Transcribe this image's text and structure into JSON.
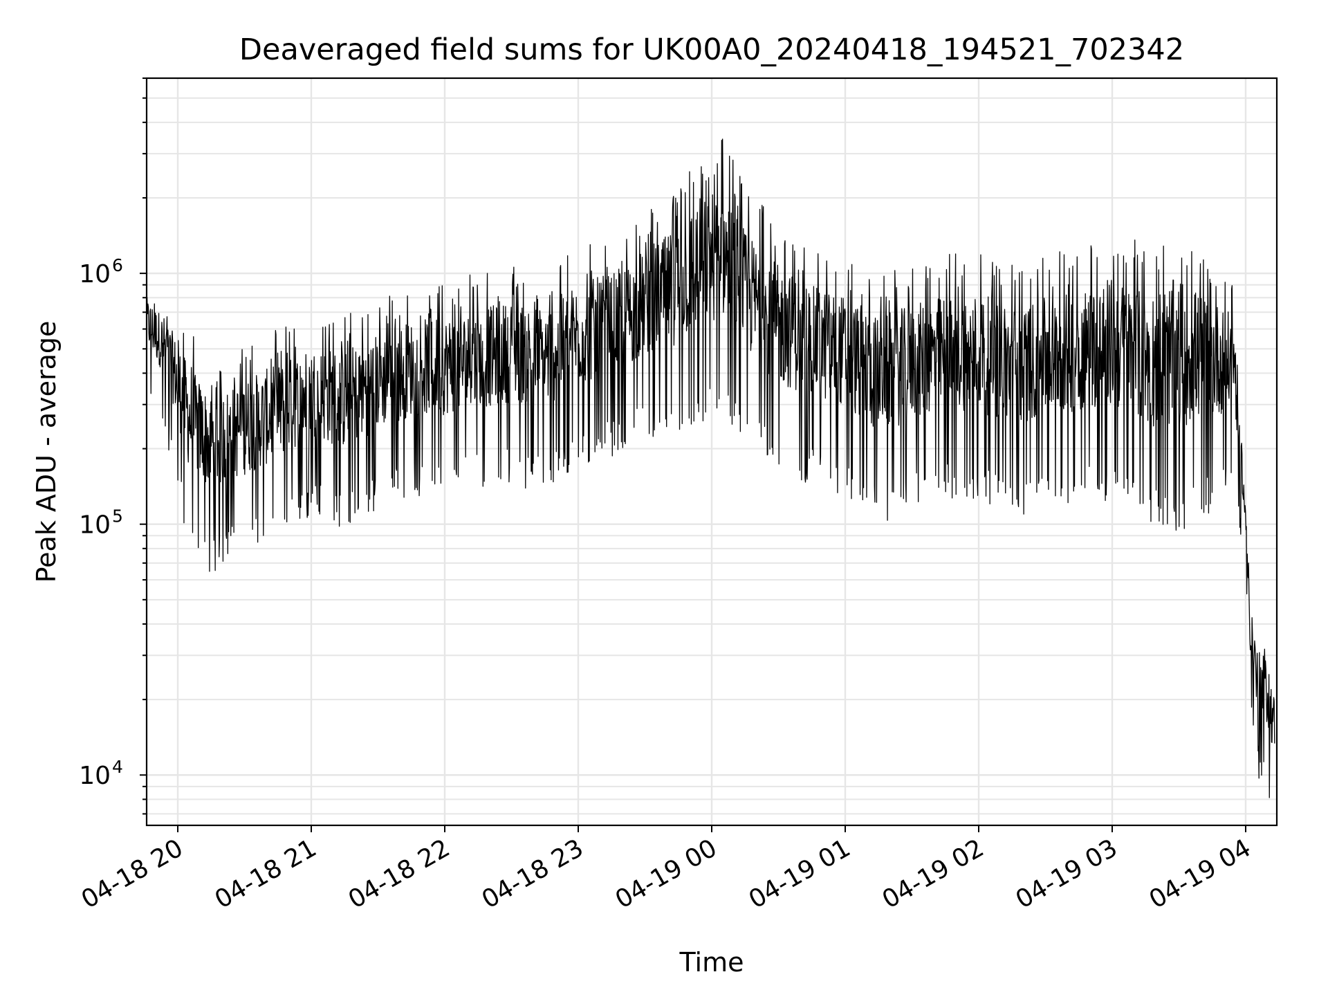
{
  "chart_data": {
    "type": "line",
    "title": "Deaveraged field sums for UK00A0_20240418_194521_702342",
    "xlabel": "Time",
    "ylabel": "Peak ADU - average",
    "x_range": [
      "2024-04-18T19:46",
      "2024-04-19T04:14"
    ],
    "x_ticks": [
      {
        "time": "2024-04-18T20:00",
        "label": "04-18 20"
      },
      {
        "time": "2024-04-18T21:00",
        "label": "04-18 21"
      },
      {
        "time": "2024-04-18T22:00",
        "label": "04-18 22"
      },
      {
        "time": "2024-04-18T23:00",
        "label": "04-18 23"
      },
      {
        "time": "2024-04-19T00:00",
        "label": "04-19 00"
      },
      {
        "time": "2024-04-19T01:00",
        "label": "04-19 01"
      },
      {
        "time": "2024-04-19T02:00",
        "label": "04-19 02"
      },
      {
        "time": "2024-04-19T03:00",
        "label": "04-19 03"
      },
      {
        "time": "2024-04-19T04:00",
        "label": "04-19 04"
      }
    ],
    "y_scale": "log",
    "ylim": [
      6300,
      6000000
    ],
    "y_ticks": [
      {
        "value": 10000,
        "base": "10",
        "exp": "4"
      },
      {
        "value": 100000,
        "base": "10",
        "exp": "5"
      },
      {
        "value": 1000000,
        "base": "10",
        "exp": "6"
      }
    ],
    "grid": true,
    "line_color": "#000000",
    "grid_color": "#e6e6e6",
    "series": [
      {
        "x": [
          "2024-04-18T19:46",
          "2024-04-18T19:55",
          "2024-04-18T20:05",
          "2024-04-18T20:15",
          "2024-04-18T20:25",
          "2024-04-18T20:35",
          "2024-04-18T20:45",
          "2024-04-18T21:00",
          "2024-04-18T21:15",
          "2024-04-18T21:30",
          "2024-04-18T21:45",
          "2024-04-18T22:00",
          "2024-04-18T22:15",
          "2024-04-18T22:30",
          "2024-04-18T22:45",
          "2024-04-18T23:00",
          "2024-04-18T23:15",
          "2024-04-18T23:30",
          "2024-04-18T23:45",
          "2024-04-18T23:55",
          "2024-04-19T00:05",
          "2024-04-19T00:15",
          "2024-04-19T00:30",
          "2024-04-19T00:45",
          "2024-04-19T01:00",
          "2024-04-19T01:15",
          "2024-04-19T01:30",
          "2024-04-19T01:45",
          "2024-04-19T02:00",
          "2024-04-19T02:15",
          "2024-04-19T02:30",
          "2024-04-19T02:45",
          "2024-04-19T03:00",
          "2024-04-19T03:15",
          "2024-04-19T03:30",
          "2024-04-19T03:45",
          "2024-04-19T03:55",
          "2024-04-19T04:00",
          "2024-04-19T04:02",
          "2024-04-19T04:05",
          "2024-04-19T04:10",
          "2024-04-19T04:13"
        ],
        "y": [
          650000,
          450000,
          220000,
          180000,
          200000,
          220000,
          230000,
          300000,
          260000,
          310000,
          360000,
          350000,
          380000,
          400000,
          380000,
          450000,
          520000,
          600000,
          700000,
          1100000,
          1000000,
          700000,
          560000,
          480000,
          450000,
          330000,
          400000,
          420000,
          420000,
          380000,
          400000,
          420000,
          420000,
          340000,
          330000,
          380000,
          420000,
          120000,
          50000,
          28000,
          20000,
          12000
        ],
        "envelope_low": [
          420000,
          300000,
          110000,
          90000,
          100000,
          110000,
          120000,
          150000,
          130000,
          160000,
          180000,
          180000,
          190000,
          200000,
          190000,
          230000,
          260000,
          300000,
          320000,
          350000,
          380000,
          300000,
          220000,
          200000,
          180000,
          140000,
          160000,
          180000,
          170000,
          150000,
          160000,
          170000,
          170000,
          140000,
          130000,
          160000,
          200000,
          90000,
          25000,
          14000,
          12000,
          9000
        ],
        "envelope_high": [
          950000,
          800000,
          600000,
          450000,
          500000,
          550000,
          600000,
          700000,
          700000,
          800000,
          900000,
          950000,
          1000000,
          1100000,
          1050000,
          1300000,
          1400000,
          1700000,
          2300000,
          3200000,
          3500000,
          2200000,
          1600000,
          1300000,
          1200000,
          1000000,
          1100000,
          1200000,
          1250000,
          1100000,
          1200000,
          1300000,
          1500000,
          1300000,
          1600000,
          1200000,
          900000,
          120000,
          60000,
          40000,
          35000,
          25000
        ]
      }
    ]
  }
}
